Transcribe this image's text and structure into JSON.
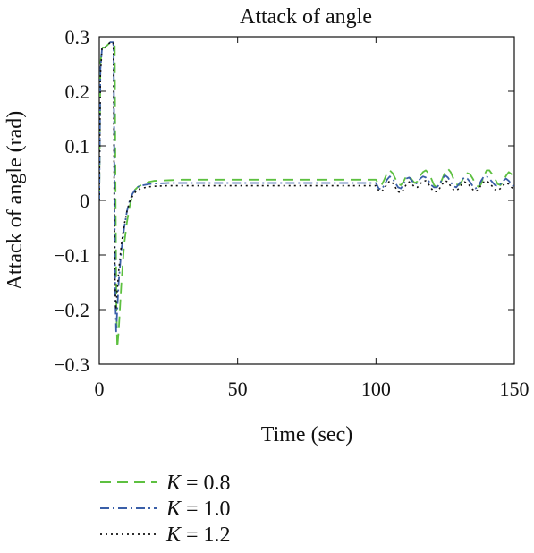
{
  "chart_data": {
    "type": "line",
    "title": "Attack of angle",
    "xlabel": "Time (sec)",
    "ylabel": "Attack of angle (rad)",
    "xlim": [
      0,
      150
    ],
    "ylim": [
      -0.3,
      0.3
    ],
    "xticks": [
      0,
      50,
      100,
      150
    ],
    "xtick_labels": [
      "0",
      "50",
      "100",
      "150"
    ],
    "yticks": [
      -0.3,
      -0.2,
      -0.1,
      0,
      0.1,
      0.2,
      0.3
    ],
    "ytick_labels": [
      "−0.3",
      "−0.2",
      "−0.1",
      "0",
      "0.1",
      "0.2",
      "0.3"
    ],
    "grid": false,
    "legend_position": "below",
    "series": [
      {
        "name": "K = 0.8",
        "legend_var": "K",
        "legend_rest": " = 0.8",
        "color": "#5dc040",
        "style": "dashed",
        "x": [
          0,
          0.4,
          1,
          2,
          3,
          4,
          5,
          5.6,
          5.9,
          6.2,
          6.5,
          7,
          8,
          9,
          10,
          11,
          12,
          13,
          14,
          16,
          18,
          20,
          25,
          30,
          40,
          50,
          60,
          70,
          80,
          90,
          100,
          101,
          102,
          103,
          104,
          105,
          106,
          107,
          108,
          109,
          110,
          111,
          112,
          113,
          114,
          115,
          116,
          117,
          118,
          119,
          120,
          121,
          122,
          123,
          124,
          125,
          126,
          127,
          128,
          129,
          130,
          131,
          132,
          133,
          134,
          135,
          136,
          137,
          138,
          139,
          140,
          141,
          142,
          143,
          144,
          145,
          146,
          147,
          148,
          149,
          150
        ],
        "y": [
          0.0,
          0.25,
          0.28,
          0.28,
          0.285,
          0.29,
          0.29,
          0.285,
          0.0,
          -0.2,
          -0.27,
          -0.24,
          -0.15,
          -0.08,
          -0.04,
          -0.01,
          0.01,
          0.02,
          0.025,
          0.03,
          0.034,
          0.036,
          0.037,
          0.038,
          0.038,
          0.038,
          0.038,
          0.038,
          0.038,
          0.038,
          0.038,
          0.03,
          0.028,
          0.038,
          0.05,
          0.055,
          0.05,
          0.04,
          0.03,
          0.028,
          0.035,
          0.045,
          0.045,
          0.038,
          0.032,
          0.035,
          0.045,
          0.052,
          0.055,
          0.05,
          0.04,
          0.028,
          0.024,
          0.028,
          0.04,
          0.052,
          0.058,
          0.052,
          0.04,
          0.03,
          0.028,
          0.035,
          0.045,
          0.05,
          0.048,
          0.04,
          0.03,
          0.025,
          0.03,
          0.045,
          0.055,
          0.055,
          0.048,
          0.04,
          0.03,
          0.028,
          0.035,
          0.045,
          0.052,
          0.048,
          0.04
        ]
      },
      {
        "name": "K = 1.0",
        "legend_var": "K",
        "legend_rest": " = 1.0",
        "color": "#3a5fa8",
        "style": "dashdot",
        "x": [
          0,
          0.4,
          1,
          2,
          3,
          4,
          5,
          5.2,
          5.5,
          5.8,
          6.1,
          6.5,
          7,
          8,
          9,
          10,
          11,
          12,
          13,
          14,
          16,
          18,
          20,
          25,
          30,
          40,
          50,
          60,
          70,
          80,
          90,
          100,
          101,
          102,
          103,
          104,
          105,
          106,
          107,
          108,
          109,
          110,
          111,
          112,
          113,
          114,
          115,
          116,
          117,
          118,
          119,
          120,
          121,
          122,
          123,
          124,
          125,
          126,
          127,
          128,
          129,
          130,
          131,
          132,
          133,
          134,
          135,
          136,
          137,
          138,
          139,
          140,
          141,
          142,
          143,
          144,
          145,
          146,
          147,
          148,
          149,
          150
        ],
        "y": [
          0.0,
          0.24,
          0.28,
          0.28,
          0.285,
          0.29,
          0.29,
          0.28,
          0.0,
          -0.18,
          -0.24,
          -0.2,
          -0.15,
          -0.09,
          -0.05,
          -0.02,
          0.0,
          0.012,
          0.02,
          0.025,
          0.028,
          0.03,
          0.031,
          0.032,
          0.032,
          0.032,
          0.032,
          0.032,
          0.032,
          0.032,
          0.032,
          0.032,
          0.022,
          0.02,
          0.028,
          0.038,
          0.044,
          0.04,
          0.032,
          0.024,
          0.022,
          0.03,
          0.04,
          0.042,
          0.036,
          0.03,
          0.032,
          0.04,
          0.044,
          0.042,
          0.036,
          0.028,
          0.024,
          0.024,
          0.03,
          0.04,
          0.046,
          0.042,
          0.034,
          0.026,
          0.024,
          0.03,
          0.038,
          0.042,
          0.04,
          0.034,
          0.026,
          0.022,
          0.026,
          0.036,
          0.044,
          0.044,
          0.04,
          0.034,
          0.028,
          0.026,
          0.03,
          0.036,
          0.04,
          0.036,
          0.03,
          0.025
        ]
      },
      {
        "name": "K = 1.2",
        "legend_var": "K",
        "legend_rest": " = 1.2",
        "color": "#111111",
        "style": "dotted",
        "x": [
          0,
          0.4,
          1,
          2,
          3,
          4,
          5,
          5.1,
          5.4,
          5.7,
          6.0,
          6.4,
          7,
          8,
          9,
          10,
          11,
          12,
          13,
          14,
          16,
          18,
          20,
          25,
          30,
          40,
          50,
          60,
          70,
          80,
          90,
          100,
          101,
          102,
          103,
          104,
          105,
          106,
          107,
          108,
          109,
          110,
          111,
          112,
          113,
          114,
          115,
          116,
          117,
          118,
          119,
          120,
          121,
          122,
          123,
          124,
          125,
          126,
          127,
          128,
          129,
          130,
          131,
          132,
          133,
          134,
          135,
          136,
          137,
          138,
          139,
          140,
          141,
          142,
          143,
          144,
          145,
          146,
          147,
          148,
          149,
          150
        ],
        "y": [
          0.0,
          0.23,
          0.28,
          0.28,
          0.285,
          0.29,
          0.29,
          0.28,
          0.0,
          -0.15,
          -0.2,
          -0.17,
          -0.13,
          -0.08,
          -0.045,
          -0.02,
          -0.002,
          0.008,
          0.015,
          0.02,
          0.023,
          0.025,
          0.026,
          0.027,
          0.027,
          0.027,
          0.027,
          0.027,
          0.027,
          0.027,
          0.027,
          0.027,
          0.018,
          0.016,
          0.022,
          0.03,
          0.036,
          0.032,
          0.024,
          0.016,
          0.014,
          0.02,
          0.03,
          0.034,
          0.03,
          0.024,
          0.024,
          0.03,
          0.036,
          0.036,
          0.03,
          0.022,
          0.016,
          0.016,
          0.022,
          0.03,
          0.036,
          0.034,
          0.026,
          0.02,
          0.018,
          0.022,
          0.03,
          0.034,
          0.032,
          0.026,
          0.02,
          0.016,
          0.02,
          0.028,
          0.034,
          0.036,
          0.032,
          0.026,
          0.02,
          0.018,
          0.022,
          0.028,
          0.032,
          0.03,
          0.024,
          0.02
        ]
      }
    ]
  }
}
